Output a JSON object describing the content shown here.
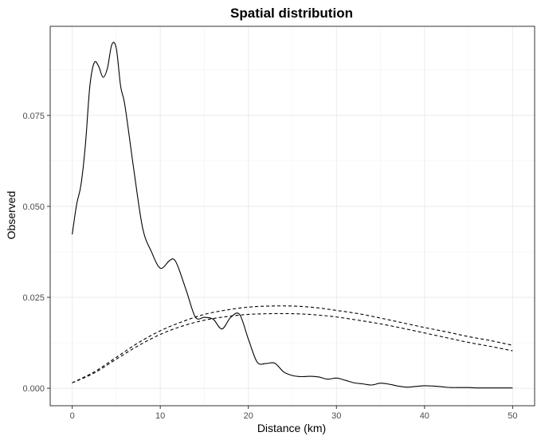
{
  "chart_data": {
    "type": "line",
    "title": "Spatial distribution",
    "xlabel": "Distance (km)",
    "ylabel": "Observed",
    "xlim": [
      -2.5,
      52.5
    ],
    "ylim": [
      -0.0048,
      0.0995
    ],
    "x_ticks": [
      0,
      10,
      20,
      30,
      40,
      50
    ],
    "x_tick_labels": [
      "0",
      "10",
      "20",
      "30",
      "40",
      "50"
    ],
    "y_ticks": [
      0,
      0.025,
      0.05,
      0.075
    ],
    "y_tick_labels": [
      "0.000",
      "0.025",
      "0.050",
      "0.075"
    ],
    "grid": true,
    "legend": "none",
    "series": [
      {
        "style": "solid",
        "x": [
          0,
          0.5,
          1,
          1.5,
          2,
          2.5,
          3,
          3.5,
          4,
          4.5,
          5,
          5.5,
          6,
          7,
          8,
          9,
          10,
          11,
          11.5,
          12,
          13,
          14,
          15,
          16,
          17,
          18,
          19,
          20,
          21,
          22,
          23,
          24,
          25,
          26,
          27,
          28,
          29,
          30,
          31,
          32,
          33,
          34,
          35,
          36,
          37,
          38,
          39,
          40,
          41,
          42,
          43,
          44,
          45,
          46,
          47,
          48,
          49,
          50
        ],
        "y": [
          0.0423,
          0.0505,
          0.056,
          0.067,
          0.083,
          0.0895,
          0.0885,
          0.0855,
          0.088,
          0.0945,
          0.0935,
          0.083,
          0.0775,
          0.06,
          0.044,
          0.0375,
          0.033,
          0.035,
          0.0355,
          0.0335,
          0.0265,
          0.0195,
          0.0195,
          0.019,
          0.0163,
          0.0195,
          0.0203,
          0.0135,
          0.0072,
          0.0068,
          0.0069,
          0.0045,
          0.0035,
          0.0032,
          0.0033,
          0.0031,
          0.0025,
          0.0028,
          0.0022,
          0.0015,
          0.0012,
          0.0009,
          0.0014,
          0.0011,
          0.0006,
          0.0003,
          0.0005,
          0.0007,
          0.0006,
          0.0004,
          0.0002,
          0.0002,
          0.0002,
          0.0001,
          0.0001,
          0.0001,
          0.0001,
          0.0001
        ]
      },
      {
        "style": "dashed",
        "x": [
          0,
          2.5,
          5,
          7.5,
          10,
          12.5,
          15,
          17.5,
          20,
          22.5,
          25,
          27.5,
          30,
          32.5,
          35,
          37.5,
          40,
          42.5,
          45,
          47.5,
          50
        ],
        "y": [
          0.0015,
          0.0045,
          0.0085,
          0.0125,
          0.0158,
          0.0183,
          0.0203,
          0.0215,
          0.0223,
          0.0226,
          0.0226,
          0.0222,
          0.0214,
          0.0205,
          0.0193,
          0.018,
          0.0167,
          0.0155,
          0.0142,
          0.0131,
          0.0118
        ]
      },
      {
        "style": "dashed",
        "x": [
          0,
          2.5,
          5,
          7.5,
          10,
          12.5,
          15,
          17.5,
          20,
          22.5,
          25,
          27.5,
          30,
          32.5,
          35,
          37.5,
          40,
          42.5,
          45,
          47.5,
          50
        ],
        "y": [
          0.0015,
          0.0042,
          0.008,
          0.0117,
          0.0148,
          0.0171,
          0.0187,
          0.0197,
          0.0203,
          0.0205,
          0.0205,
          0.0202,
          0.0196,
          0.0187,
          0.0177,
          0.0165,
          0.0152,
          0.0139,
          0.0126,
          0.0115,
          0.0103
        ]
      }
    ]
  }
}
